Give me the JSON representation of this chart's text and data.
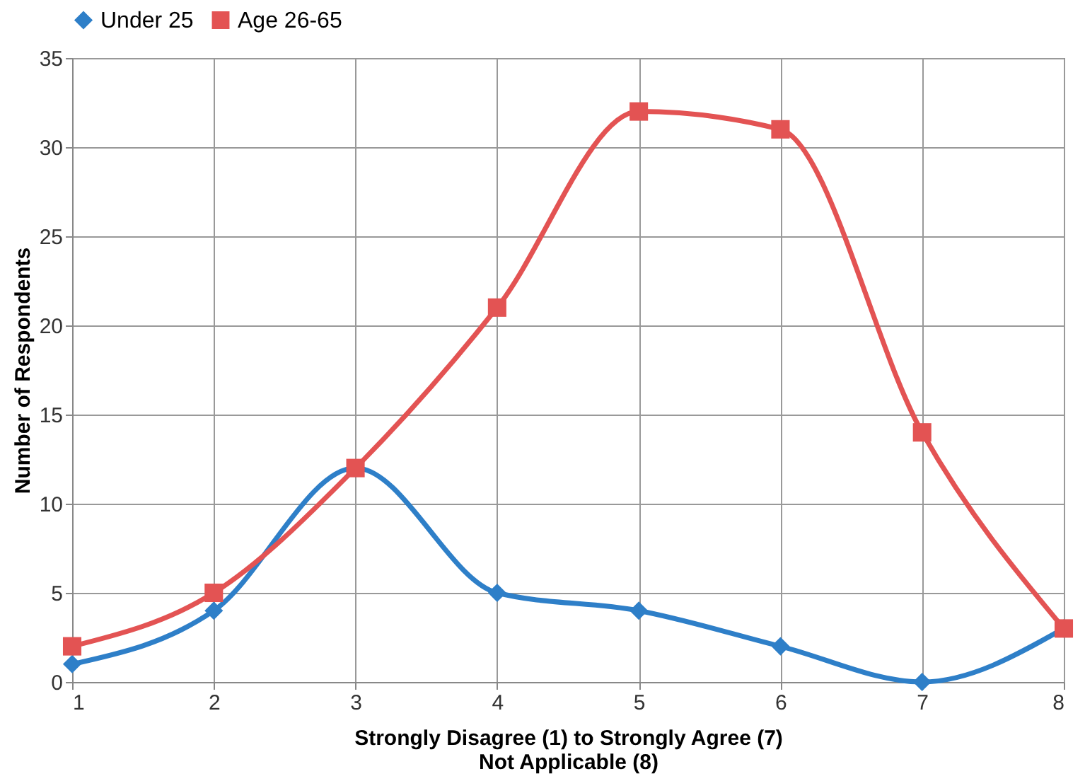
{
  "chart_data": {
    "type": "line",
    "xlabel": "Strongly Disagree (1) to Strongly Agree (7)\nNot Applicable (8)",
    "ylabel": "Number of Respondents",
    "x": [
      1,
      2,
      3,
      4,
      5,
      6,
      7,
      8
    ],
    "series": [
      {
        "name": "Under 25",
        "color": "#2e7fc8",
        "marker": "diamond",
        "values": [
          1,
          4,
          12,
          5,
          4,
          2,
          0,
          3
        ]
      },
      {
        "name": "Age 26-65",
        "color": "#e35353",
        "marker": "square",
        "values": [
          2,
          5,
          12,
          21,
          32,
          31,
          14,
          3
        ]
      }
    ],
    "xlim": [
      1,
      8
    ],
    "xticks": [
      1,
      2,
      3,
      4,
      5,
      6,
      7,
      8
    ],
    "ylim": [
      0,
      35
    ],
    "yticks": [
      0,
      5,
      10,
      15,
      20,
      25,
      30,
      35
    ],
    "grid": true,
    "legend": "top"
  }
}
